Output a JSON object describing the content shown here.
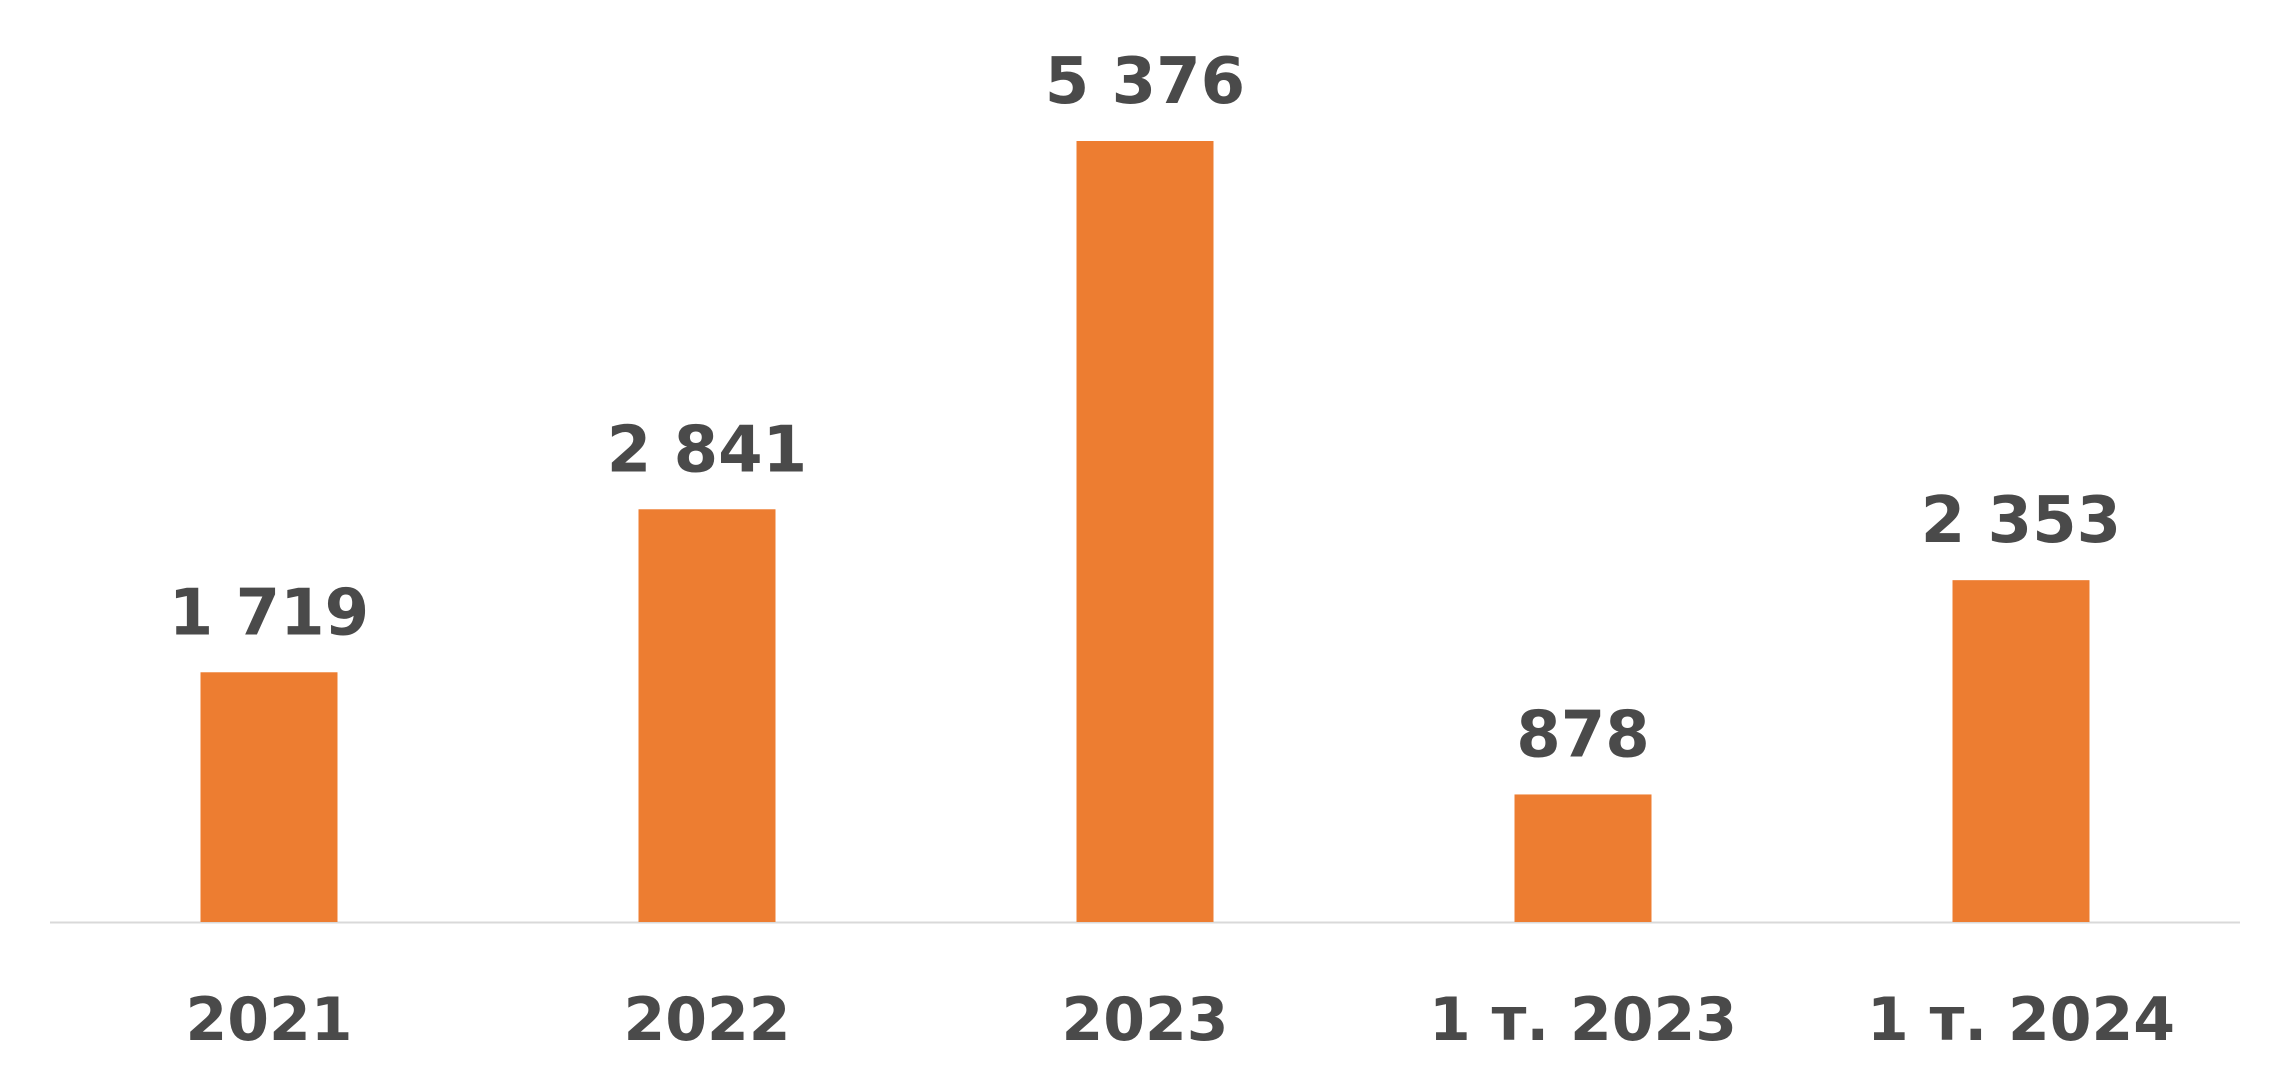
{
  "chart_data": {
    "type": "bar",
    "categories": [
      "2021",
      "2022",
      "2023",
      "1 т. 2023",
      "1 т. 2024"
    ],
    "values": [
      1719,
      2841,
      5376,
      878,
      2353
    ],
    "value_labels": [
      "1 719",
      "2 841",
      "5 376",
      "878",
      "2 353"
    ],
    "title": "",
    "xlabel": "",
    "ylabel": "",
    "ylim": [
      0,
      5376
    ],
    "grid": false,
    "legend": "none",
    "colors": {
      "bar": "#ED7D31",
      "text": "#4A4A4A",
      "axis": "#D9D9D9"
    }
  }
}
